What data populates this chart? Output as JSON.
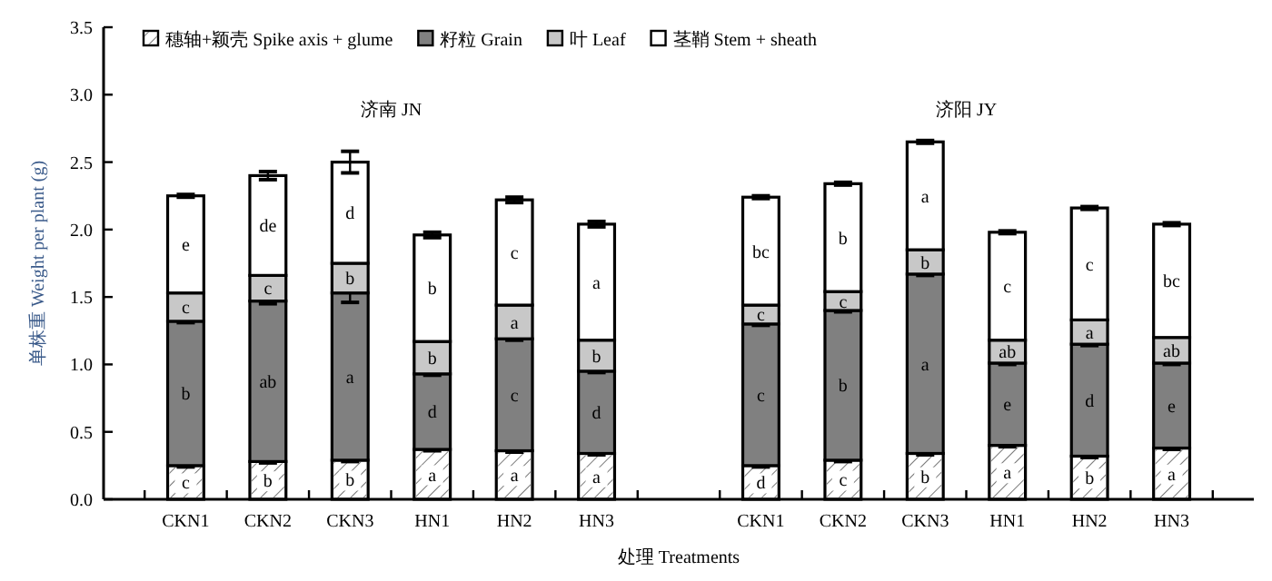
{
  "chart_data": {
    "type": "bar",
    "stacked": true,
    "xlabel": "处理 Treatments",
    "ylabel": "单株重 Weight per plant (g)",
    "categories": [
      "CKN1",
      "CKN2",
      "CKN3",
      "HN1",
      "HN2",
      "HN3",
      null,
      "CKN1",
      "CKN2",
      "CKN3",
      "HN1",
      "HN2",
      "HN3"
    ],
    "ylim": [
      0,
      3.5
    ],
    "yticks": [
      {
        "value": 0,
        "label": "0.0"
      },
      {
        "value": 0.5,
        "label": "0.5"
      },
      {
        "value": 1,
        "label": "1.0"
      },
      {
        "value": 1.5,
        "label": "1.5"
      },
      {
        "value": 2,
        "label": "2.0"
      },
      {
        "value": 2.5,
        "label": "2.5"
      },
      {
        "value": 3,
        "label": "3.0"
      },
      {
        "value": 3.5,
        "label": "3.5"
      }
    ],
    "annotations": [
      "济南 JN",
      "济阳 JY"
    ],
    "legend": "top left",
    "grid": false,
    "series": [
      {
        "name": "穗轴+颖壳 Spike axis + glume",
        "color": "#ffffff",
        "values": [
          0.25,
          0.28,
          0.29,
          0.37,
          0.36,
          0.34,
          null,
          0.25,
          0.29,
          0.34,
          0.4,
          0.32,
          0.38
        ],
        "errors": [
          0.01,
          0.01,
          0.01,
          0.01,
          0.01,
          0.01,
          null,
          0.01,
          0.01,
          0.01,
          0.01,
          0.01,
          0.01
        ],
        "value_labels": [
          "c",
          "b",
          "b",
          "a",
          "a",
          "a",
          null,
          "d",
          "c",
          "b",
          "a",
          "b",
          "a"
        ]
      },
      {
        "name": "籽粒 Grain",
        "color": "#808080",
        "values": [
          1.07,
          1.19,
          1.24,
          0.56,
          0.83,
          0.61,
          null,
          1.05,
          1.11,
          1.33,
          0.61,
          0.83,
          0.63
        ],
        "errors": [
          0.01,
          0.02,
          0.07,
          0.01,
          0.01,
          0.01,
          null,
          0.01,
          0.01,
          0.01,
          0.01,
          0.01,
          0.01
        ],
        "value_labels": [
          "b",
          "ab",
          "a",
          "d",
          "c",
          "d",
          null,
          "c",
          "b",
          "a",
          "e",
          "d",
          "e"
        ]
      },
      {
        "name": "叶 Leaf",
        "color": "#c8c8c8",
        "values": [
          0.21,
          0.19,
          0.22,
          0.24,
          0.25,
          0.23,
          null,
          0.14,
          0.14,
          0.18,
          0.17,
          0.18,
          0.19
        ],
        "value_labels": [
          "c",
          "c",
          "b",
          "b",
          "a",
          "b",
          null,
          "c",
          "c",
          "b",
          "ab",
          "a",
          "ab"
        ]
      },
      {
        "name": "茎鞘 Stem + sheath",
        "color": "#ffffff",
        "values": [
          0.72,
          0.74,
          0.75,
          0.79,
          0.78,
          0.86,
          null,
          0.8,
          0.8,
          0.8,
          0.8,
          0.83,
          0.84
        ],
        "errors": [
          0.01,
          0.03,
          0.08,
          0.02,
          0.02,
          0.02,
          null,
          0.01,
          0.01,
          0.01,
          0.01,
          0.01,
          0.01
        ],
        "value_labels": [
          "e",
          "de",
          "d",
          "b",
          "c",
          "a",
          null,
          "bc",
          "b",
          "a",
          "c",
          "c",
          "bc"
        ]
      }
    ]
  }
}
